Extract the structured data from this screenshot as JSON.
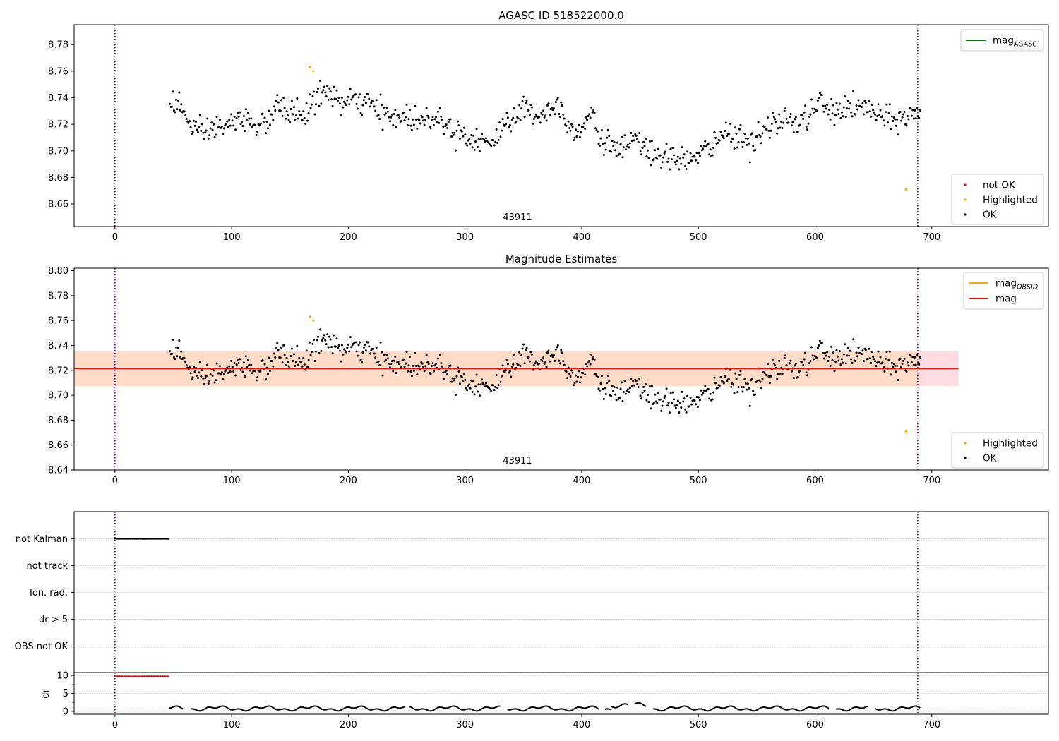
{
  "figure": {
    "title": "AGASC ID 518522000.0"
  },
  "chart_data": [
    {
      "type": "scatter",
      "title": "AGASC ID 518522000.0",
      "xlim": [
        -35,
        800
      ],
      "ylim": [
        8.643,
        8.795
      ],
      "xticks": [
        "0",
        "100",
        "200",
        "300",
        "400",
        "500",
        "600",
        "700"
      ],
      "yticks": [
        "8.66",
        "8.68",
        "8.70",
        "8.72",
        "8.74",
        "8.76",
        "8.78"
      ],
      "obsid_label": "43911",
      "vlines": [
        0,
        688
      ],
      "line_legend": [
        {
          "name": "mag",
          "subscript": "AGASC",
          "color": "#008000"
        }
      ],
      "point_legend": [
        {
          "name": "not OK",
          "color": "#ff0000"
        },
        {
          "name": "Highlighted",
          "color": "#ffa500"
        },
        {
          "name": "OK",
          "color": "#000000"
        }
      ],
      "highlighted_points": [
        [
          167,
          8.763
        ],
        [
          170,
          8.76
        ],
        [
          678,
          8.671
        ]
      ],
      "ok_series": {
        "x_start": 47,
        "x_end": 690,
        "n": 720,
        "anchors": [
          [
            47,
            8.737
          ],
          [
            55,
            8.736
          ],
          [
            62,
            8.722
          ],
          [
            68,
            8.718
          ],
          [
            75,
            8.71
          ],
          [
            82,
            8.716
          ],
          [
            88,
            8.718
          ],
          [
            95,
            8.719
          ],
          [
            105,
            8.722
          ],
          [
            115,
            8.725
          ],
          [
            125,
            8.717
          ],
          [
            130,
            8.722
          ],
          [
            140,
            8.733
          ],
          [
            155,
            8.728
          ],
          [
            165,
            8.729
          ],
          [
            175,
            8.743
          ],
          [
            185,
            8.744
          ],
          [
            195,
            8.735
          ],
          [
            210,
            8.738
          ],
          [
            225,
            8.731
          ],
          [
            235,
            8.725
          ],
          [
            250,
            8.726
          ],
          [
            265,
            8.722
          ],
          [
            275,
            8.728
          ],
          [
            285,
            8.719
          ],
          [
            295,
            8.715
          ],
          [
            305,
            8.709
          ],
          [
            315,
            8.71
          ],
          [
            325,
            8.703
          ],
          [
            332,
            8.72
          ],
          [
            340,
            8.725
          ],
          [
            350,
            8.731
          ],
          [
            365,
            8.727
          ],
          [
            380,
            8.735
          ],
          [
            390,
            8.718
          ],
          [
            400,
            8.717
          ],
          [
            410,
            8.731
          ],
          [
            415,
            8.708
          ],
          [
            425,
            8.705
          ],
          [
            435,
            8.701
          ],
          [
            445,
            8.706
          ],
          [
            455,
            8.703
          ],
          [
            465,
            8.693
          ],
          [
            475,
            8.694
          ],
          [
            485,
            8.696
          ],
          [
            495,
            8.692
          ],
          [
            505,
            8.7
          ],
          [
            515,
            8.705
          ],
          [
            525,
            8.715
          ],
          [
            535,
            8.712
          ],
          [
            545,
            8.704
          ],
          [
            555,
            8.713
          ],
          [
            565,
            8.72
          ],
          [
            575,
            8.725
          ],
          [
            585,
            8.719
          ],
          [
            595,
            8.727
          ],
          [
            605,
            8.737
          ],
          [
            615,
            8.727
          ],
          [
            625,
            8.734
          ],
          [
            635,
            8.731
          ],
          [
            645,
            8.733
          ],
          [
            655,
            8.726
          ],
          [
            665,
            8.722
          ],
          [
            675,
            8.725
          ],
          [
            685,
            8.728
          ],
          [
            690,
            8.726
          ]
        ],
        "jitter_sd": 0.0075
      }
    },
    {
      "type": "scatter",
      "title": "Magnitude Estimates",
      "xlim": [
        -35,
        800
      ],
      "ylim": [
        8.64,
        8.802
      ],
      "xticks": [
        "0",
        "100",
        "200",
        "300",
        "400",
        "500",
        "600",
        "700"
      ],
      "yticks": [
        "8.64",
        "8.66",
        "8.68",
        "8.70",
        "8.72",
        "8.74",
        "8.76",
        "8.78",
        "8.80"
      ],
      "obsid_label": "43911",
      "vlines": [
        0,
        688
      ],
      "mean_mag": 8.7215,
      "band_outer": [
        8.7075,
        8.7355
      ],
      "band_inner": [
        8.7075,
        8.7355
      ],
      "band_outer_x": [
        -35,
        723
      ],
      "band_inner_x": [
        -35,
        690
      ],
      "band_outer_color": "#ffc0cb",
      "band_inner_color": "#ffdac5",
      "line_legend": [
        {
          "name": "mag",
          "subscript": "OBSID",
          "color": "#ffa500"
        },
        {
          "name": "mag",
          "subscript": "",
          "color": "#ff0000"
        }
      ],
      "point_legend": [
        {
          "name": "Highlighted",
          "color": "#ffa500"
        },
        {
          "name": "OK",
          "color": "#000000"
        }
      ],
      "highlighted_points": [
        [
          167,
          8.763
        ],
        [
          170,
          8.76
        ],
        [
          678,
          8.671
        ]
      ]
    },
    {
      "type": "scatter",
      "title": "",
      "xlim": [
        -35,
        800
      ],
      "flag_labels": [
        "not Kalman",
        "not track",
        "Ion. rad.",
        "dr > 5",
        "OBS not OK"
      ],
      "flag_segments": [
        {
          "flag": "not Kalman",
          "x": [
            0,
            46
          ]
        }
      ],
      "vlines": [
        0,
        688
      ]
    },
    {
      "type": "scatter",
      "title": "",
      "xlim": [
        -35,
        800
      ],
      "ylim": [
        -0.8,
        10.8
      ],
      "ylabel": "dr",
      "xticks": [
        "0",
        "100",
        "200",
        "300",
        "400",
        "500",
        "600",
        "700"
      ],
      "yticks": [
        "0",
        "5",
        "10"
      ],
      "vlines": [
        0,
        688
      ],
      "capped_segment": {
        "x": [
          0,
          46
        ],
        "y": 9.7,
        "color": "#ff0000"
      },
      "dr_series": {
        "x_start": 47,
        "x_end": 690,
        "gaps": [
          [
            58,
            65
          ],
          [
            248,
            253
          ],
          [
            330,
            336
          ],
          [
            415,
            420
          ],
          [
            440,
            445
          ],
          [
            455,
            461
          ],
          [
            612,
            618
          ],
          [
            645,
            651
          ]
        ],
        "baseline": 0.8,
        "amplitude": 0.45
      }
    }
  ]
}
